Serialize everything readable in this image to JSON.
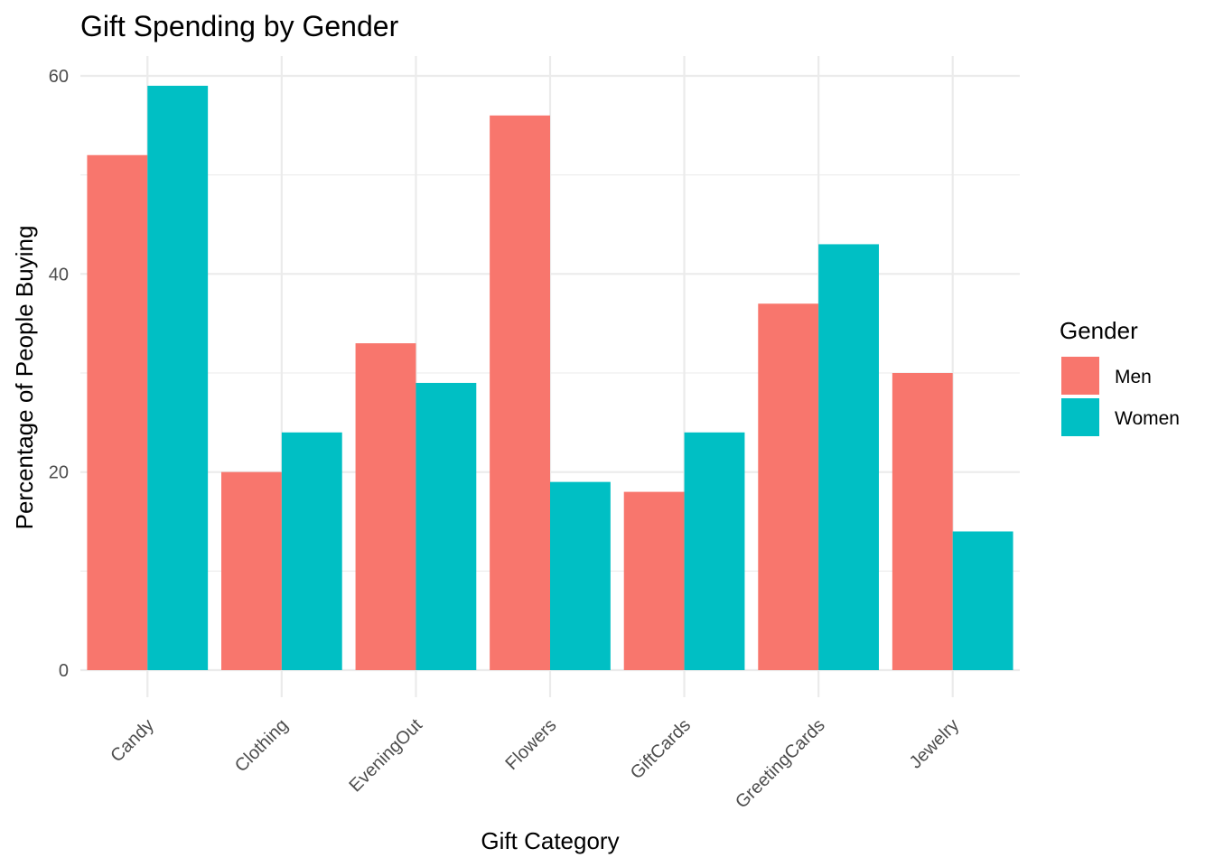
{
  "chart_data": {
    "type": "bar",
    "title": "Gift Spending by Gender",
    "xlabel": "Gift Category",
    "ylabel": "Percentage of People Buying",
    "categories": [
      "Candy",
      "Clothing",
      "EveningOut",
      "Flowers",
      "GiftCards",
      "GreetingCards",
      "Jewelry"
    ],
    "series": [
      {
        "name": "Men",
        "color": "#F8766D",
        "values": [
          52,
          20,
          33,
          56,
          18,
          37,
          30
        ]
      },
      {
        "name": "Women",
        "color": "#00BFC4",
        "values": [
          59,
          24,
          29,
          19,
          24,
          43,
          14
        ]
      }
    ],
    "ylim": [
      0,
      60
    ],
    "yticks": [
      0,
      20,
      40,
      60
    ],
    "grid": true,
    "legend": {
      "title": "Gender",
      "position": "right"
    }
  }
}
